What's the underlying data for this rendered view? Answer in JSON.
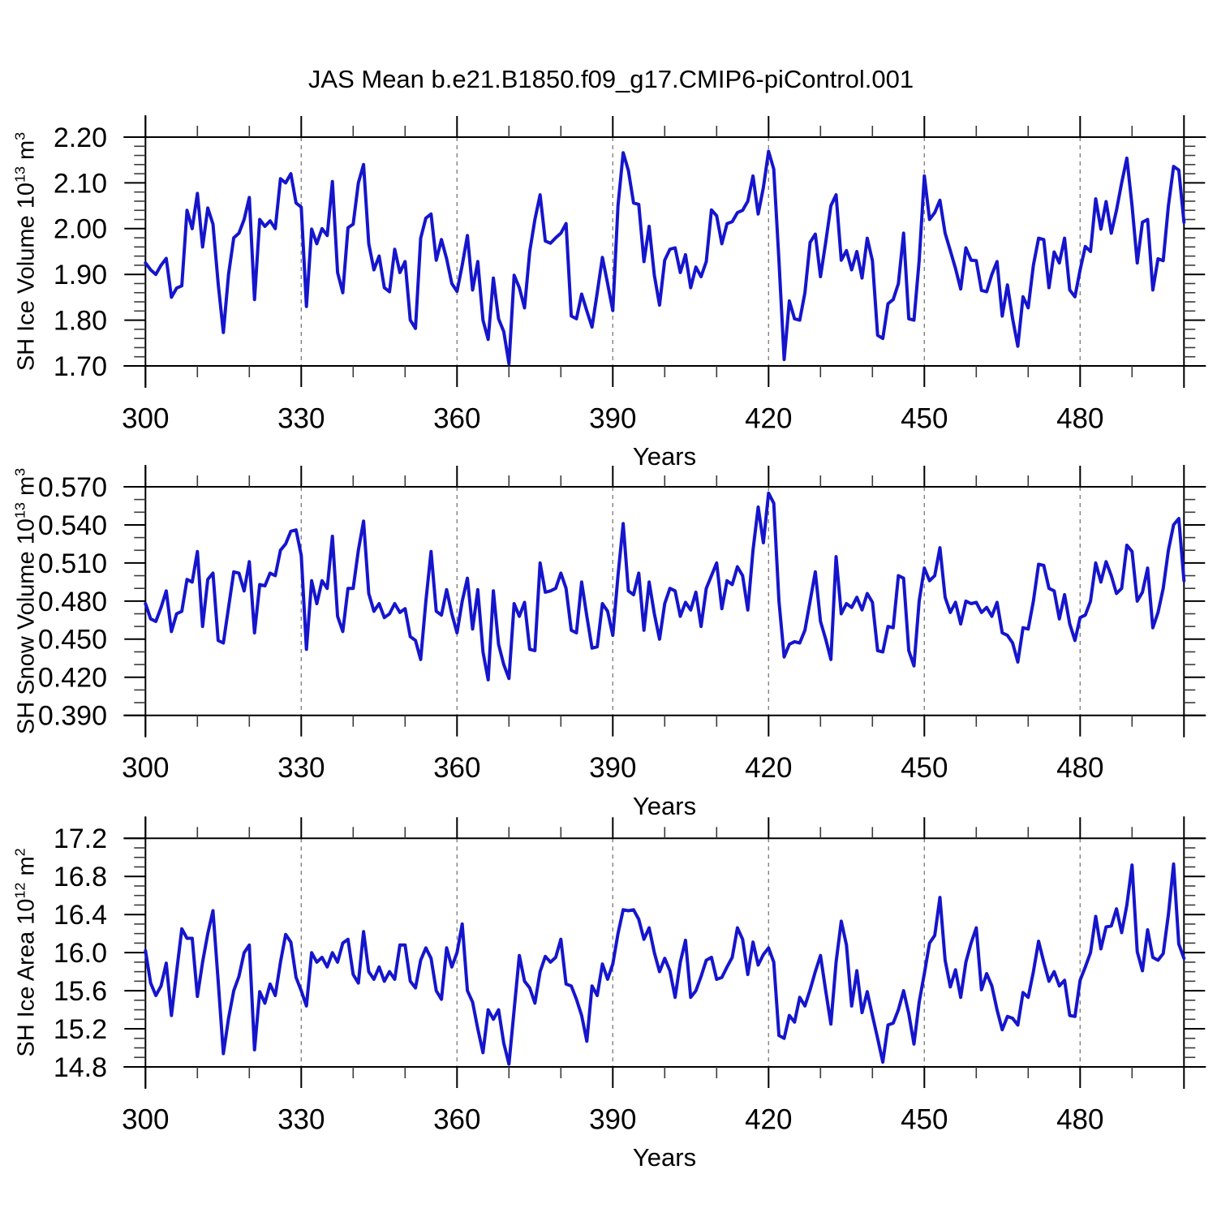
{
  "title": "JAS Mean b.e21.B1850.f09_g17.CMIP6-piControl.001",
  "line_color": "#1515cd",
  "grid_color": "#828282",
  "axis_color": "#000000",
  "x_range": [
    300,
    500
  ],
  "x_major_ticks": [
    300,
    330,
    360,
    390,
    420,
    450,
    480
  ],
  "x_tick_labels": [
    "300",
    "330",
    "360",
    "390",
    "420",
    "450",
    "480"
  ],
  "x_minor_step": 10,
  "x_grid": [
    330,
    360,
    390,
    420,
    450,
    480
  ],
  "chart_data": [
    {
      "type": "line",
      "name": "sh-ice-volume",
      "xlabel": "Years",
      "ylabel": {
        "prefix": "SH Ice Volume 10",
        "exp": "13",
        "unit": " m",
        "unit_exp": "3"
      },
      "ylim": [
        1.7,
        2.2
      ],
      "ytick_values": [
        2.2,
        2.1,
        2.0,
        1.9,
        1.8,
        1.7
      ],
      "ytick_labels": [
        "2.20",
        "2.10",
        "2.00",
        "1.90",
        "1.80",
        "1.70"
      ],
      "y_minor_step": 0.02,
      "x0": 300,
      "dx": 1,
      "values": [
        1.925,
        1.91,
        1.9,
        1.92,
        1.935,
        1.85,
        1.87,
        1.875,
        2.04,
        2.0,
        2.077,
        1.96,
        2.045,
        2.01,
        1.88,
        1.773,
        1.9,
        1.98,
        1.99,
        2.02,
        2.068,
        1.845,
        2.02,
        2.005,
        2.017,
        2.0,
        2.109,
        2.1,
        2.12,
        2.056,
        2.047,
        1.83,
        1.999,
        1.967,
        2.0,
        1.985,
        2.103,
        1.904,
        1.86,
        2.002,
        2.01,
        2.1,
        2.14,
        1.967,
        1.91,
        1.94,
        1.871,
        1.862,
        1.955,
        1.904,
        1.928,
        1.8,
        1.782,
        1.979,
        2.023,
        2.032,
        1.931,
        1.976,
        1.934,
        1.88,
        1.863,
        1.92,
        1.985,
        1.866,
        1.928,
        1.8,
        1.758,
        1.892,
        1.803,
        1.775,
        1.705,
        1.898,
        1.871,
        1.827,
        1.95,
        2.02,
        2.074,
        1.973,
        1.968,
        1.98,
        1.99,
        2.011,
        1.809,
        1.803,
        1.857,
        1.82,
        1.785,
        1.86,
        1.937,
        1.88,
        1.821,
        2.05,
        2.166,
        2.127,
        2.056,
        2.053,
        1.928,
        2.005,
        1.898,
        1.833,
        1.931,
        1.955,
        1.958,
        1.904,
        1.943,
        1.871,
        1.916,
        1.895,
        1.928,
        2.041,
        2.028,
        1.967,
        2.011,
        2.015,
        2.035,
        2.04,
        2.06,
        2.115,
        2.032,
        2.09,
        2.169,
        2.13,
        1.93,
        1.714,
        1.842,
        1.803,
        1.8,
        1.86,
        1.97,
        1.988,
        1.895,
        1.97,
        2.05,
        2.074,
        1.931,
        1.952,
        1.91,
        1.95,
        1.892,
        1.979,
        1.93,
        1.767,
        1.76,
        1.836,
        1.845,
        1.88,
        1.99,
        1.803,
        1.8,
        1.93,
        2.115,
        2.02,
        2.035,
        2.062,
        1.99,
        1.952,
        1.913,
        1.868,
        1.958,
        1.931,
        1.93,
        1.865,
        1.862,
        1.9,
        1.928,
        1.809,
        1.877,
        1.803,
        1.743,
        1.851,
        1.827,
        1.92,
        1.979,
        1.976,
        1.871,
        1.949,
        1.925,
        1.979,
        1.866,
        1.851,
        1.91,
        1.961,
        1.95,
        2.065,
        1.999,
        2.059,
        1.99,
        2.04,
        2.1,
        2.154,
        2.05,
        1.925,
        2.014,
        2.02,
        1.866,
        1.934,
        1.93,
        2.05,
        2.136,
        2.128,
        2.014
      ]
    },
    {
      "type": "line",
      "name": "sh-snow-volume",
      "xlabel": "Years",
      "ylabel": {
        "prefix": "SH Snow Volume 10",
        "exp": "13",
        "unit": " m",
        "unit_exp": "3"
      },
      "ylim": [
        0.39,
        0.57
      ],
      "ytick_values": [
        0.57,
        0.54,
        0.51,
        0.48,
        0.45,
        0.42,
        0.39
      ],
      "ytick_labels": [
        "0.570",
        "0.540",
        "0.510",
        "0.480",
        "0.450",
        "0.420",
        "0.390"
      ],
      "y_minor_step": 0.01,
      "x0": 300,
      "dx": 1,
      "values": [
        0.478,
        0.466,
        0.464,
        0.475,
        0.488,
        0.456,
        0.47,
        0.472,
        0.497,
        0.495,
        0.519,
        0.46,
        0.497,
        0.502,
        0.449,
        0.447,
        0.475,
        0.503,
        0.502,
        0.488,
        0.511,
        0.455,
        0.493,
        0.492,
        0.502,
        0.5,
        0.52,
        0.525,
        0.535,
        0.536,
        0.516,
        0.442,
        0.496,
        0.478,
        0.496,
        0.49,
        0.531,
        0.468,
        0.456,
        0.49,
        0.49,
        0.52,
        0.543,
        0.486,
        0.472,
        0.478,
        0.467,
        0.47,
        0.478,
        0.471,
        0.474,
        0.452,
        0.449,
        0.434,
        0.48,
        0.519,
        0.472,
        0.469,
        0.489,
        0.47,
        0.455,
        0.48,
        0.498,
        0.458,
        0.489,
        0.44,
        0.418,
        0.488,
        0.446,
        0.43,
        0.419,
        0.478,
        0.468,
        0.479,
        0.442,
        0.441,
        0.51,
        0.487,
        0.488,
        0.49,
        0.502,
        0.49,
        0.457,
        0.455,
        0.495,
        0.468,
        0.443,
        0.444,
        0.478,
        0.472,
        0.453,
        0.5,
        0.541,
        0.488,
        0.485,
        0.502,
        0.457,
        0.495,
        0.47,
        0.45,
        0.478,
        0.49,
        0.488,
        0.468,
        0.479,
        0.473,
        0.487,
        0.46,
        0.49,
        0.5,
        0.51,
        0.474,
        0.496,
        0.493,
        0.507,
        0.5,
        0.473,
        0.52,
        0.554,
        0.526,
        0.565,
        0.557,
        0.48,
        0.436,
        0.446,
        0.448,
        0.447,
        0.457,
        0.48,
        0.503,
        0.464,
        0.45,
        0.434,
        0.515,
        0.47,
        0.478,
        0.475,
        0.483,
        0.473,
        0.486,
        0.479,
        0.441,
        0.44,
        0.46,
        0.459,
        0.5,
        0.498,
        0.441,
        0.429,
        0.48,
        0.506,
        0.496,
        0.5,
        0.522,
        0.483,
        0.471,
        0.479,
        0.462,
        0.48,
        0.478,
        0.479,
        0.471,
        0.475,
        0.468,
        0.479,
        0.455,
        0.453,
        0.447,
        0.432,
        0.459,
        0.458,
        0.48,
        0.509,
        0.508,
        0.49,
        0.488,
        0.466,
        0.485,
        0.462,
        0.449,
        0.467,
        0.469,
        0.48,
        0.51,
        0.495,
        0.511,
        0.5,
        0.486,
        0.49,
        0.524,
        0.519,
        0.48,
        0.487,
        0.506,
        0.459,
        0.471,
        0.49,
        0.52,
        0.54,
        0.545,
        0.496
      ]
    },
    {
      "type": "line",
      "name": "sh-ice-area",
      "xlabel": "Years",
      "ylabel": {
        "prefix": "SH Ice Area 10",
        "exp": "12",
        "unit": " m",
        "unit_exp": "2"
      },
      "ylim": [
        14.8,
        17.2
      ],
      "ytick_values": [
        17.2,
        16.8,
        16.4,
        16.0,
        15.6,
        15.2,
        14.8
      ],
      "ytick_labels": [
        "17.2",
        "16.8",
        "16.4",
        "16.0",
        "15.6",
        "15.2",
        "14.8"
      ],
      "y_minor_step": 0.1,
      "x0": 300,
      "dx": 1,
      "values": [
        16.02,
        15.68,
        15.55,
        15.65,
        15.89,
        15.34,
        15.8,
        16.25,
        16.15,
        16.15,
        15.54,
        15.9,
        16.2,
        16.44,
        15.7,
        14.94,
        15.31,
        15.6,
        15.75,
        16.0,
        16.08,
        14.98,
        15.59,
        15.47,
        15.67,
        15.55,
        15.9,
        16.19,
        16.11,
        15.74,
        15.6,
        15.44,
        16.0,
        15.9,
        15.95,
        15.85,
        16.0,
        15.9,
        16.1,
        16.14,
        15.77,
        15.68,
        16.22,
        15.8,
        15.72,
        15.85,
        15.7,
        15.8,
        15.72,
        16.08,
        16.08,
        15.7,
        15.63,
        15.92,
        16.05,
        15.94,
        15.6,
        15.51,
        16.05,
        15.85,
        16.0,
        16.3,
        15.6,
        15.48,
        15.2,
        14.95,
        15.4,
        15.3,
        15.4,
        15.05,
        14.83,
        15.4,
        15.97,
        15.7,
        15.63,
        15.47,
        15.8,
        15.96,
        15.9,
        15.95,
        16.14,
        15.67,
        15.65,
        15.51,
        15.34,
        15.07,
        15.65,
        15.55,
        15.88,
        15.72,
        15.88,
        16.2,
        16.45,
        16.44,
        16.45,
        16.35,
        16.14,
        16.26,
        16.0,
        15.8,
        15.94,
        15.81,
        15.53,
        15.9,
        16.13,
        15.53,
        15.6,
        15.75,
        15.92,
        15.95,
        15.72,
        15.74,
        15.85,
        15.95,
        16.26,
        16.14,
        15.77,
        16.11,
        15.87,
        15.98,
        16.05,
        15.9,
        15.13,
        15.1,
        15.34,
        15.27,
        15.53,
        15.44,
        15.61,
        15.8,
        15.97,
        15.6,
        15.25,
        15.9,
        16.33,
        16.08,
        15.44,
        15.81,
        15.37,
        15.59,
        15.34,
        15.1,
        14.85,
        15.24,
        15.26,
        15.4,
        15.6,
        15.36,
        15.04,
        15.48,
        15.78,
        16.1,
        16.18,
        16.58,
        15.92,
        15.64,
        15.82,
        15.53,
        15.9,
        16.1,
        16.26,
        15.61,
        15.78,
        15.65,
        15.4,
        15.19,
        15.33,
        15.31,
        15.24,
        15.58,
        15.53,
        15.8,
        16.12,
        15.9,
        15.7,
        15.8,
        15.65,
        15.71,
        15.34,
        15.33,
        15.71,
        15.85,
        16.0,
        16.38,
        16.04,
        16.27,
        16.28,
        16.46,
        16.21,
        16.5,
        16.92,
        16.01,
        15.81,
        16.24,
        15.95,
        15.92,
        15.99,
        16.4,
        16.93,
        16.09,
        15.94
      ]
    }
  ]
}
